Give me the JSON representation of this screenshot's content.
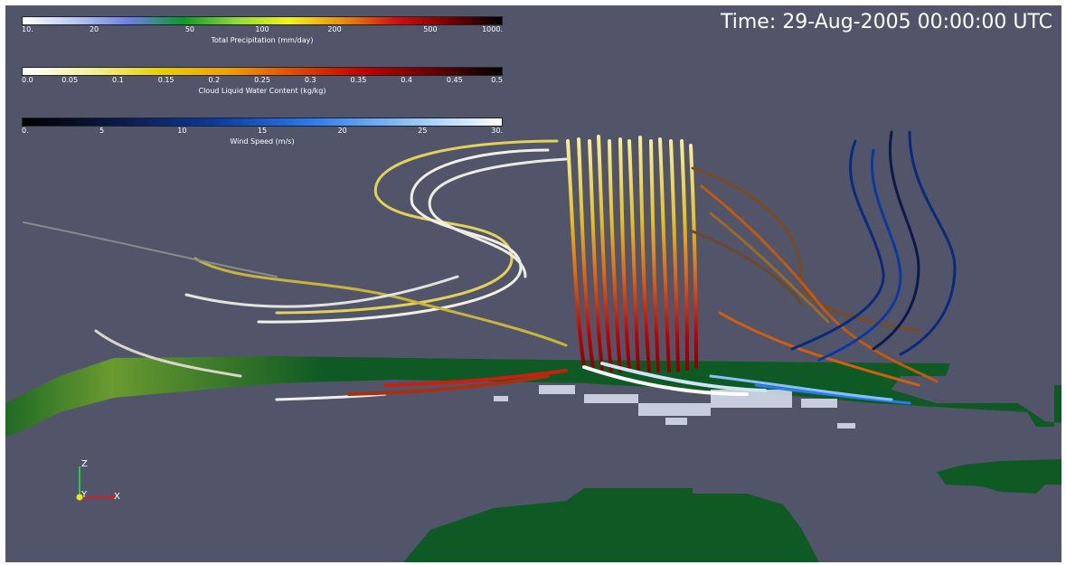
{
  "time_label": "Time: 29-Aug-2005 00:00:00 UTC",
  "colorbars": [
    {
      "title": "Total Precipitation (mm/day)",
      "ticks": [
        "10.",
        "20",
        "50",
        "100",
        "200",
        "500",
        "1000."
      ],
      "scale": "log",
      "colors": [
        "#ffffff",
        "#b8c8f0",
        "#6a7fe8",
        "#0a9a2a",
        "#8ed83c",
        "#f2f218",
        "#e88f10",
        "#d41010",
        "#7a0000",
        "#000000"
      ]
    },
    {
      "title": "Cloud Liquid Water Content (kg/kg)",
      "ticks": [
        "0.0",
        "0.05",
        "0.1",
        "0.15",
        "0.2",
        "0.25",
        "0.3",
        "0.35",
        "0.4",
        "0.45",
        "0.5"
      ],
      "scale": "linear",
      "colors": [
        "#ffffff",
        "#f6ef9a",
        "#e8d000",
        "#f0a000",
        "#e04800",
        "#c00000",
        "#6a0000",
        "#000000"
      ]
    },
    {
      "title": "Wind Speed (m/s)",
      "ticks": [
        "0.",
        "5",
        "10",
        "15",
        "20",
        "25",
        "30."
      ],
      "scale": "linear",
      "colors": [
        "#000000",
        "#0c1a4a",
        "#0a3aa0",
        "#2a7af0",
        "#8ac0f8",
        "#ffffff"
      ]
    }
  ],
  "axes": {
    "z": "Z",
    "y": "Y",
    "x": "X"
  },
  "scene": {
    "background": "#525569",
    "ground_color": "#0f5a24"
  }
}
